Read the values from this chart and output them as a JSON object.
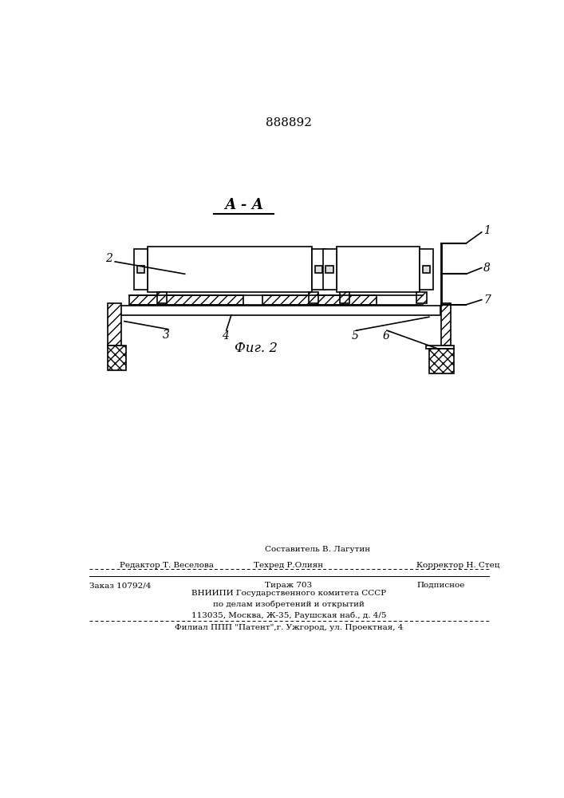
{
  "patent_number": "888892",
  "section_label": "А - А",
  "fig_label": "Фиг. 2",
  "bg_color": "#ffffff",
  "line_color": "#000000",
  "footer": {
    "line1": "Составитель В. Лагутин",
    "line2_left": "Редактор Т. Веселова",
    "line2_center": "Техред Р.Олиян",
    "line2_right": "Корректор Н. Стец",
    "line3_left": "Заказ 10792/4",
    "line3_center": "Тираж 703",
    "line3_right": "Подписное",
    "line4": "ВНИИПИ Государственного комитета СССР",
    "line5": "по делам изобретений и открытий",
    "line6": "113035, Москва, Ж-35, Раушская наб., д. 4/5",
    "line7": "Филиал ППП \"Патент\",г. Ужгород, ул. Проектная, 4"
  }
}
